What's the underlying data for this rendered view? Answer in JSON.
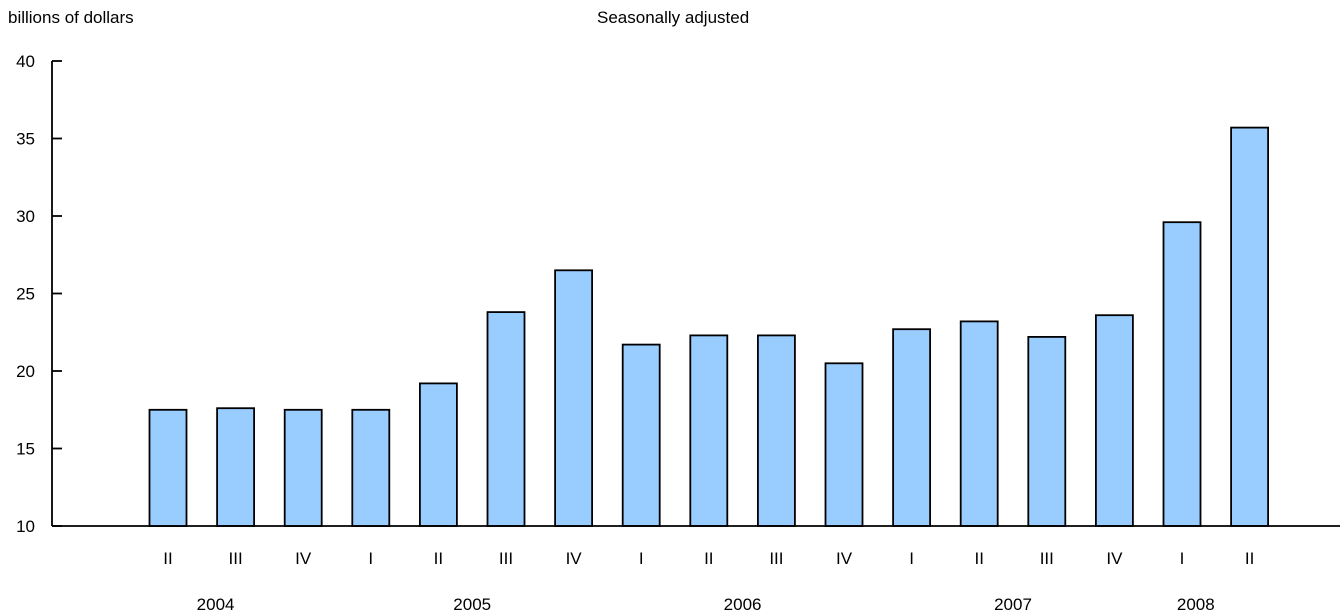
{
  "chart_data": {
    "type": "bar",
    "ylabel": "billions of dollars",
    "subtitle": "Seasonally adjusted",
    "ylim": [
      10,
      40
    ],
    "yticks": [
      10,
      15,
      20,
      25,
      30,
      35,
      40
    ],
    "categories": [
      "II",
      "III",
      "IV",
      "I",
      "II",
      "III",
      "IV",
      "I",
      "II",
      "III",
      "IV",
      "I",
      "II",
      "III",
      "IV",
      "I",
      "II"
    ],
    "years": [
      {
        "label": "2004",
        "start": 0,
        "end": 2
      },
      {
        "label": "2005",
        "start": 3,
        "end": 6
      },
      {
        "label": "2006",
        "start": 7,
        "end": 10
      },
      {
        "label": "2007",
        "start": 11,
        "end": 14
      },
      {
        "label": "2008",
        "start": 15,
        "end": 16
      }
    ],
    "values": [
      17.5,
      17.6,
      17.5,
      17.5,
      19.2,
      23.8,
      26.5,
      21.7,
      22.3,
      22.3,
      20.5,
      22.7,
      23.2,
      22.2,
      23.6,
      29.6,
      35.7
    ],
    "bar_color": "#99ccff",
    "bar_stroke": "#000000",
    "grid": false,
    "legend": "none"
  }
}
